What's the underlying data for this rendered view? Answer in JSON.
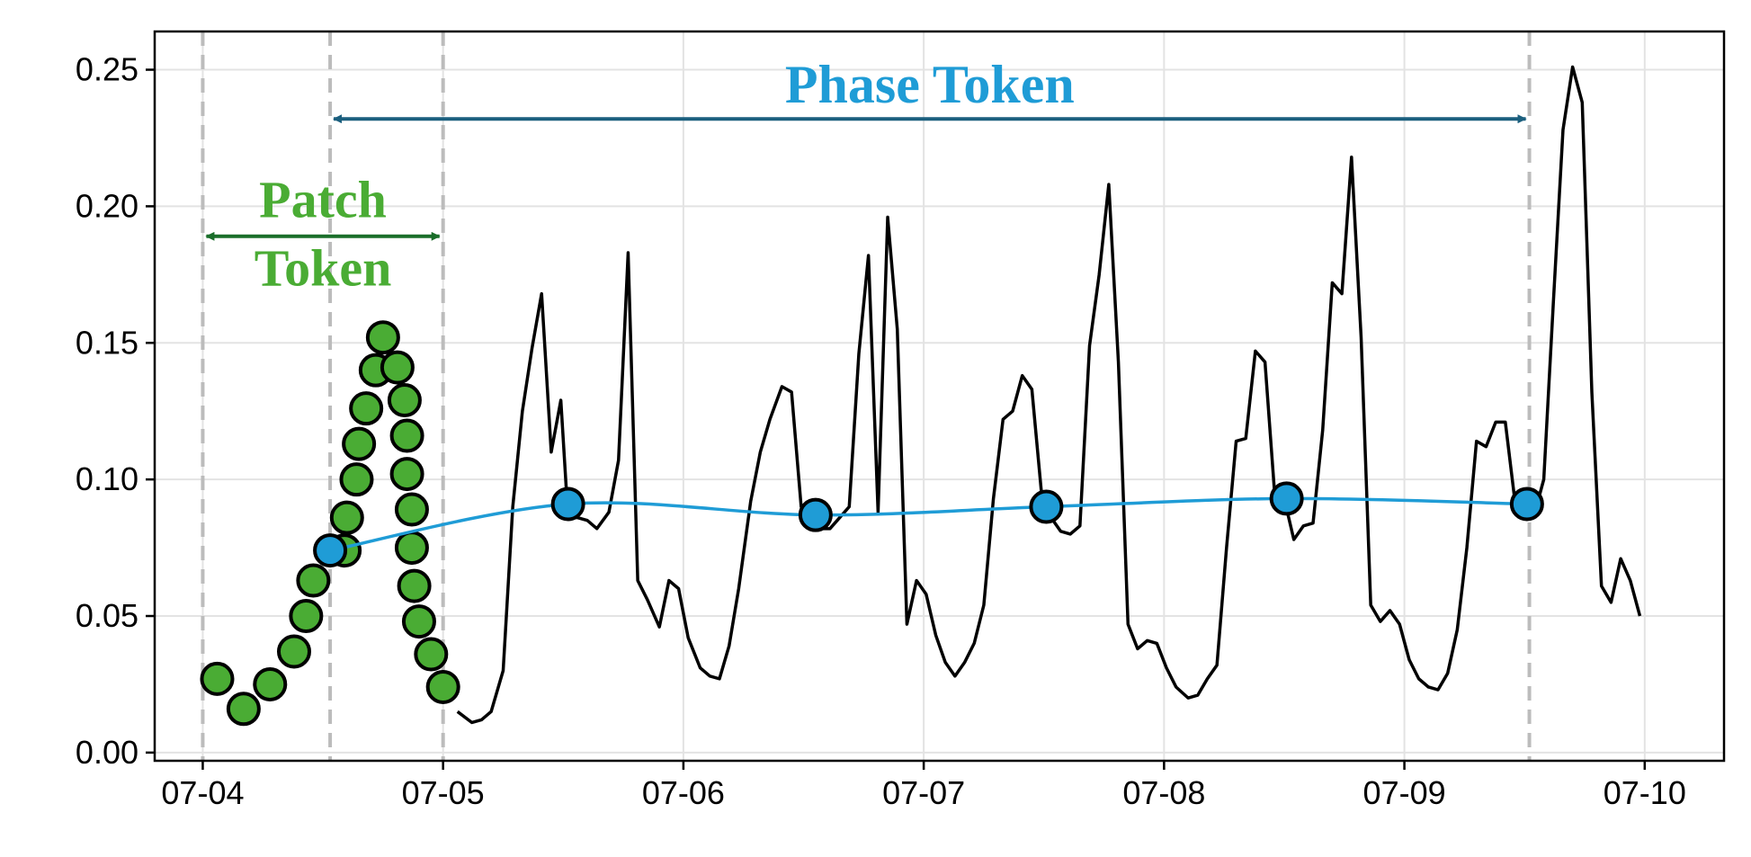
{
  "chart_data": {
    "type": "line",
    "title": "",
    "xlabel": "",
    "ylabel": "",
    "x_ticks": [
      "07-04",
      "07-05",
      "07-06",
      "07-07",
      "07-08",
      "07-09",
      "07-10"
    ],
    "y_ticks": [
      "0.00",
      "0.05",
      "0.10",
      "0.15",
      "0.20",
      "0.25"
    ],
    "xlim": [
      -0.2,
      6.33
    ],
    "ylim": [
      -0.003,
      0.264
    ],
    "grid": true,
    "legend": "none",
    "series": [
      {
        "kind": "line",
        "color": "#000000",
        "points": [
          [
            1.06,
            0.015
          ],
          [
            1.12,
            0.011
          ],
          [
            1.16,
            0.012
          ],
          [
            1.2,
            0.015
          ],
          [
            1.25,
            0.03
          ],
          [
            1.29,
            0.09
          ],
          [
            1.33,
            0.125
          ],
          [
            1.37,
            0.148
          ],
          [
            1.41,
            0.168
          ],
          [
            1.45,
            0.11
          ],
          [
            1.49,
            0.129
          ],
          [
            1.52,
            0.086
          ],
          [
            1.56,
            0.086
          ],
          [
            1.6,
            0.085
          ],
          [
            1.64,
            0.082
          ],
          [
            1.69,
            0.088
          ],
          [
            1.73,
            0.107
          ],
          [
            1.77,
            0.183
          ],
          [
            1.81,
            0.063
          ],
          [
            1.85,
            0.056
          ],
          [
            1.9,
            0.046
          ],
          [
            1.94,
            0.063
          ],
          [
            1.98,
            0.06
          ],
          [
            2.02,
            0.042
          ],
          [
            2.07,
            0.031
          ],
          [
            2.11,
            0.028
          ],
          [
            2.15,
            0.027
          ],
          [
            2.19,
            0.039
          ],
          [
            2.23,
            0.06
          ],
          [
            2.28,
            0.092
          ],
          [
            2.32,
            0.11
          ],
          [
            2.36,
            0.122
          ],
          [
            2.41,
            0.134
          ],
          [
            2.45,
            0.132
          ],
          [
            2.49,
            0.09
          ],
          [
            2.53,
            0.083
          ],
          [
            2.57,
            0.082
          ],
          [
            2.61,
            0.082
          ],
          [
            2.65,
            0.086
          ],
          [
            2.69,
            0.09
          ],
          [
            2.73,
            0.146
          ],
          [
            2.77,
            0.182
          ],
          [
            2.81,
            0.088
          ],
          [
            2.85,
            0.196
          ],
          [
            2.89,
            0.155
          ],
          [
            2.93,
            0.047
          ],
          [
            2.97,
            0.063
          ],
          [
            3.01,
            0.058
          ],
          [
            3.05,
            0.043
          ],
          [
            3.09,
            0.033
          ],
          [
            3.13,
            0.028
          ],
          [
            3.17,
            0.033
          ],
          [
            3.21,
            0.04
          ],
          [
            3.25,
            0.054
          ],
          [
            3.29,
            0.093
          ],
          [
            3.33,
            0.122
          ],
          [
            3.37,
            0.125
          ],
          [
            3.41,
            0.138
          ],
          [
            3.45,
            0.133
          ],
          [
            3.49,
            0.095
          ],
          [
            3.53,
            0.086
          ],
          [
            3.57,
            0.081
          ],
          [
            3.61,
            0.08
          ],
          [
            3.65,
            0.083
          ],
          [
            3.69,
            0.149
          ],
          [
            3.73,
            0.175
          ],
          [
            3.77,
            0.208
          ],
          [
            3.81,
            0.143
          ],
          [
            3.85,
            0.047
          ],
          [
            3.89,
            0.038
          ],
          [
            3.93,
            0.041
          ],
          [
            3.97,
            0.04
          ],
          [
            4.01,
            0.031
          ],
          [
            4.05,
            0.024
          ],
          [
            4.1,
            0.02
          ],
          [
            4.14,
            0.021
          ],
          [
            4.18,
            0.027
          ],
          [
            4.22,
            0.032
          ],
          [
            4.26,
            0.075
          ],
          [
            4.3,
            0.114
          ],
          [
            4.34,
            0.115
          ],
          [
            4.38,
            0.147
          ],
          [
            4.42,
            0.143
          ],
          [
            4.46,
            0.095
          ],
          [
            4.5,
            0.093
          ],
          [
            4.54,
            0.078
          ],
          [
            4.58,
            0.083
          ],
          [
            4.62,
            0.084
          ],
          [
            4.66,
            0.118
          ],
          [
            4.7,
            0.172
          ],
          [
            4.74,
            0.168
          ],
          [
            4.78,
            0.218
          ],
          [
            4.82,
            0.152
          ],
          [
            4.86,
            0.054
          ],
          [
            4.9,
            0.048
          ],
          [
            4.94,
            0.052
          ],
          [
            4.98,
            0.047
          ],
          [
            5.02,
            0.034
          ],
          [
            5.06,
            0.027
          ],
          [
            5.1,
            0.024
          ],
          [
            5.14,
            0.023
          ],
          [
            5.18,
            0.029
          ],
          [
            5.22,
            0.045
          ],
          [
            5.26,
            0.075
          ],
          [
            5.3,
            0.114
          ],
          [
            5.34,
            0.112
          ],
          [
            5.38,
            0.121
          ],
          [
            5.42,
            0.121
          ],
          [
            5.46,
            0.092
          ],
          [
            5.5,
            0.086
          ],
          [
            5.54,
            0.087
          ],
          [
            5.58,
            0.1
          ],
          [
            5.62,
            0.165
          ],
          [
            5.66,
            0.228
          ],
          [
            5.7,
            0.251
          ],
          [
            5.74,
            0.238
          ],
          [
            5.78,
            0.132
          ],
          [
            5.82,
            0.061
          ],
          [
            5.86,
            0.055
          ],
          [
            5.9,
            0.071
          ],
          [
            5.94,
            0.063
          ],
          [
            5.98,
            0.05
          ]
        ]
      },
      {
        "kind": "scatter",
        "color": "#4aac34",
        "edge": "#000000",
        "points": [
          [
            0.06,
            0.027
          ],
          [
            0.17,
            0.016
          ],
          [
            0.28,
            0.025
          ],
          [
            0.38,
            0.037
          ],
          [
            0.43,
            0.05
          ],
          [
            0.46,
            0.063
          ],
          [
            0.59,
            0.074
          ],
          [
            0.6,
            0.086
          ],
          [
            0.64,
            0.1
          ],
          [
            0.65,
            0.113
          ],
          [
            0.68,
            0.126
          ],
          [
            0.72,
            0.14
          ],
          [
            0.75,
            0.152
          ],
          [
            0.81,
            0.141
          ],
          [
            0.84,
            0.129
          ],
          [
            0.85,
            0.116
          ],
          [
            0.85,
            0.102
          ],
          [
            0.87,
            0.089
          ],
          [
            0.87,
            0.075
          ],
          [
            0.88,
            0.061
          ],
          [
            0.9,
            0.048
          ],
          [
            0.95,
            0.036
          ],
          [
            1.0,
            0.024
          ]
        ]
      },
      {
        "kind": "smooth-line",
        "color": "#1f9cd6",
        "points": [
          [
            0.53,
            0.074
          ],
          [
            1.52,
            0.091
          ],
          [
            2.55,
            0.087
          ],
          [
            3.51,
            0.09
          ],
          [
            4.51,
            0.093
          ],
          [
            5.51,
            0.091
          ]
        ]
      },
      {
        "kind": "scatter",
        "color": "#1f9cd6",
        "edge": "#000000",
        "points": [
          [
            0.53,
            0.074
          ],
          [
            1.52,
            0.091
          ],
          [
            2.55,
            0.087
          ],
          [
            3.51,
            0.09
          ],
          [
            4.51,
            0.093
          ],
          [
            5.51,
            0.091
          ]
        ]
      }
    ],
    "vlines": [
      0.0,
      0.53,
      1.0,
      5.52
    ],
    "annotations": {
      "patch_line1": "Patch",
      "patch_line2": "Token",
      "patch_color": "#4aac34",
      "patch_arrow_color": "#1a6e2a",
      "patch_span": [
        0.0,
        1.0
      ],
      "phase": "Phase Token",
      "phase_color": "#1f9cd6",
      "phase_arrow_color": "#1b5f7e",
      "phase_span": [
        0.53,
        5.52
      ]
    }
  }
}
